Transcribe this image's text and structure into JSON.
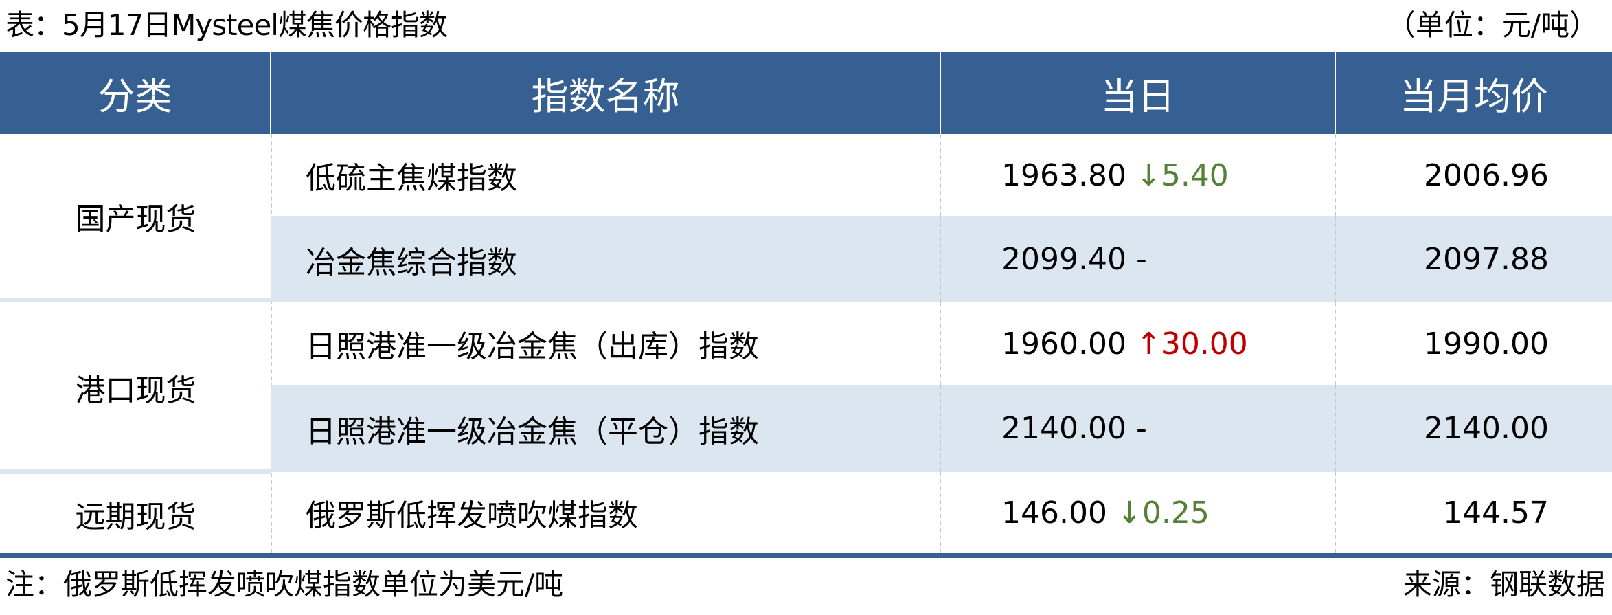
{
  "title": "表：5月17日Mysteel煤焦价格指数",
  "unit": "（单位：元/吨）",
  "header": [
    "分类",
    "指数名称",
    "当日",
    "当月均价"
  ],
  "categories": [
    "国产现货",
    "港口现货",
    "远期现货"
  ],
  "rows": [
    {
      "name": "低硫主焦煤指数",
      "today": "1963.80",
      "arrow": "↓",
      "change": "5.40",
      "trend": "down",
      "avg": "2006.96"
    },
    {
      "name": "冶金焦综合指数",
      "today": "2099.40",
      "arrow": "",
      "change": "-",
      "trend": "flat",
      "avg": "2097.88"
    },
    {
      "name": "日照港准一级冶金焦（出库）指数",
      "today": "1960.00",
      "arrow": "↑",
      "change": "30.00",
      "trend": "up",
      "avg": "1990.00"
    },
    {
      "name": "日照港准一级冶金焦（平仓）指数",
      "today": "2140.00",
      "arrow": "",
      "change": "-",
      "trend": "flat",
      "avg": "2140.00"
    },
    {
      "name": "俄罗斯低挥发喷吹煤指数",
      "today": "146.00",
      "arrow": "↓",
      "change": "0.25",
      "trend": "down",
      "avg": "144.57"
    }
  ],
  "note": "注：俄罗斯低挥发喷吹煤指数单位为美元/吨",
  "source": "来源：钢联数据",
  "colors": {
    "header": "#376092",
    "shade": "#dce6f1",
    "up": "#c00000",
    "down": "#538135"
  }
}
